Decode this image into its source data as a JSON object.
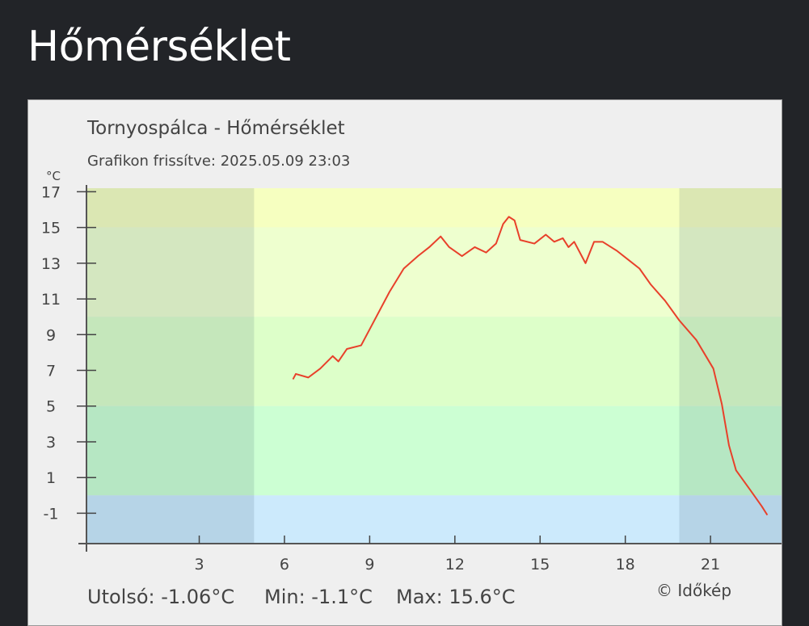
{
  "page": {
    "title": "Hőmérséklet"
  },
  "chart_data": {
    "type": "line",
    "title": "Tornyospálca - Hőmérséklet",
    "subtitle": "Grafikon frissítve: 2025.05.09 23:03",
    "ylabel": "°C",
    "ylim": [
      -2.7,
      17.2
    ],
    "xlim": [
      -0.97,
      23.5
    ],
    "yticks": [
      17,
      15,
      13,
      11,
      9,
      7,
      5,
      3,
      1,
      -1
    ],
    "xticks": [
      3,
      6,
      9,
      12,
      15,
      18,
      21
    ],
    "grid": false,
    "line_color": "#e8402a",
    "temperature_bands": [
      {
        "from": 15,
        "to": 17.2,
        "color": "#f6ffc0"
      },
      {
        "from": 10,
        "to": 15,
        "color": "#eeffcf"
      },
      {
        "from": 5,
        "to": 10,
        "color": "#ddffc9"
      },
      {
        "from": 0,
        "to": 5,
        "color": "#ccffd3"
      },
      {
        "from": -2.7,
        "to": 0,
        "color": "#cceafc"
      }
    ],
    "night_periods": [
      [
        -0.97,
        4.93
      ],
      [
        19.9,
        23.5
      ]
    ],
    "series": [
      {
        "x": [
          6.3,
          6.4,
          6.84,
          7.26,
          7.7,
          7.9,
          8.2,
          8.7,
          9.1,
          9.7,
          10.2,
          10.7,
          11.1,
          11.5,
          11.8,
          12.25,
          12.7,
          13.1,
          13.45,
          13.7,
          13.9,
          14.1,
          14.3,
          14.8,
          15.2,
          15.5,
          15.8,
          16.0,
          16.2,
          16.5,
          16.6,
          16.9,
          17.2,
          17.7,
          18.1,
          18.5,
          18.9,
          19.4,
          19.9,
          20.5,
          21.1,
          21.4,
          21.65,
          21.9,
          22.4,
          22.8,
          23.0
        ],
        "y": [
          6.5,
          6.8,
          6.6,
          7.1,
          7.8,
          7.5,
          8.2,
          8.4,
          9.6,
          11.4,
          12.7,
          13.4,
          13.9,
          14.5,
          13.9,
          13.4,
          13.9,
          13.6,
          14.1,
          15.2,
          15.6,
          15.4,
          14.3,
          14.1,
          14.6,
          14.2,
          14.4,
          13.9,
          14.2,
          13.3,
          13.0,
          14.2,
          14.2,
          13.7,
          13.2,
          12.7,
          11.8,
          10.9,
          9.8,
          8.7,
          7.1,
          5.1,
          2.8,
          1.4,
          0.3,
          -0.6,
          -1.1
        ]
      }
    ],
    "footer": {
      "last": "Utolsó: -1.06°C",
      "min": "Min: -1.1°C",
      "max": "Max: 15.6°C",
      "credit": "© Időkép"
    }
  }
}
